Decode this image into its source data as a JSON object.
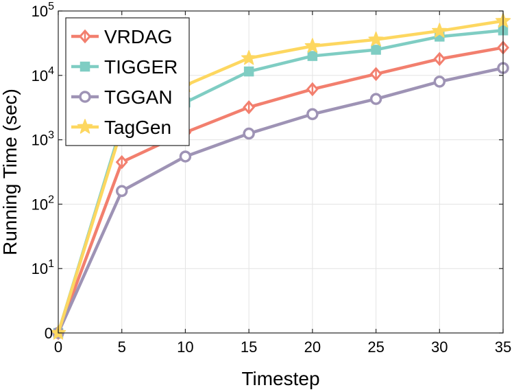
{
  "chart_data": {
    "type": "line",
    "title": "",
    "xlabel": "Timestep",
    "ylabel": "Running Time (sec)",
    "yscale": "log",
    "xlim": [
      0,
      35
    ],
    "ylim": [
      1,
      100000
    ],
    "x_ticks": [
      0,
      5,
      10,
      15,
      20,
      25,
      30,
      35
    ],
    "y_ticks": [
      {
        "value": 1,
        "base": "0",
        "exp": ""
      },
      {
        "value": 10,
        "base": "10",
        "exp": "1"
      },
      {
        "value": 100,
        "base": "10",
        "exp": "2"
      },
      {
        "value": 1000,
        "base": "10",
        "exp": "3"
      },
      {
        "value": 10000,
        "base": "10",
        "exp": "4"
      },
      {
        "value": 100000,
        "base": "10",
        "exp": "5"
      }
    ],
    "grid": true,
    "legend_position": "top-left",
    "x": [
      0,
      5,
      10,
      15,
      20,
      25,
      30,
      35
    ],
    "series": [
      {
        "name": "VRDAG",
        "color": "#F27F6E",
        "marker": "diamond",
        "values": [
          1,
          450,
          1300,
          3200,
          6100,
          10500,
          18000,
          27000
        ]
      },
      {
        "name": "TIGGER",
        "color": "#7FCDC3",
        "marker": "square",
        "values": [
          1,
          1700,
          3800,
          11500,
          20000,
          25000,
          40000,
          50000
        ]
      },
      {
        "name": "TGGAN",
        "color": "#9E93B5",
        "marker": "circle",
        "values": [
          1,
          160,
          550,
          1250,
          2500,
          4300,
          8000,
          13000
        ]
      },
      {
        "name": "TagGen",
        "color": "#FDD760",
        "marker": "star",
        "values": [
          1,
          1500,
          7000,
          18500,
          28500,
          36000,
          49000,
          70000
        ]
      }
    ]
  }
}
